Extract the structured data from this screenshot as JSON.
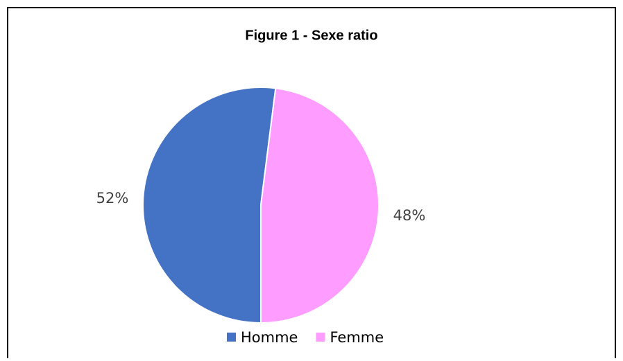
{
  "chart_data": {
    "type": "pie",
    "title": "Figure 1 - Sexe ratio",
    "categories": [
      "Homme",
      "Femme"
    ],
    "values": [
      52,
      48
    ],
    "value_labels": [
      "52%",
      "48%"
    ],
    "colors": [
      "#4472c4",
      "#ff9cff"
    ],
    "legend": "bottom"
  }
}
